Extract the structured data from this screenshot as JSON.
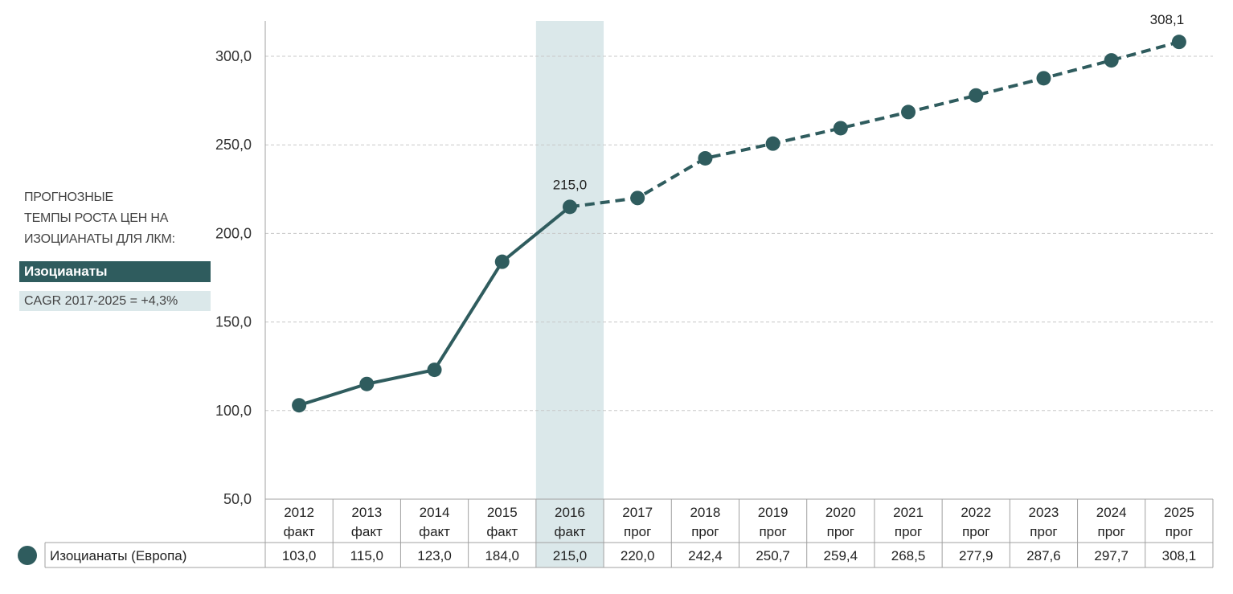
{
  "side_note": {
    "lines": [
      "ПРОГНОЗНЫЕ",
      "ТЕМПЫ РОСТА  ЦЕН  НА",
      "ИЗОЦИАНАТЫ  ДЛЯ  ЛКМ:"
    ],
    "series_label": "Изоцианаты",
    "cagr": "CAGR  2017-2025  =  +4,3%"
  },
  "colors": {
    "series": "#2f5c5e",
    "highlight": "#dbe8ea",
    "grid": "#c8c8c8",
    "table_border": "#a0a0a0"
  },
  "chart_data": {
    "type": "line",
    "categories": [
      "2012",
      "2013",
      "2014",
      "2015",
      "2016",
      "2017",
      "2018",
      "2019",
      "2020",
      "2021",
      "2022",
      "2023",
      "2024",
      "2025"
    ],
    "sublabels": [
      "факт",
      "факт",
      "факт",
      "факт",
      "факт",
      "прог",
      "прог",
      "прог",
      "прог",
      "прог",
      "прог",
      "прог",
      "прог",
      "прог"
    ],
    "series": [
      {
        "name": "Изоцианаты (Европа)",
        "values": [
          103.0,
          115.0,
          123.0,
          184.0,
          215.0,
          220.0,
          242.4,
          250.7,
          259.4,
          268.5,
          277.9,
          287.6,
          297.7,
          308.1
        ],
        "display_values": [
          "103,0",
          "115,0",
          "123,0",
          "184,0",
          "215,0",
          "220,0",
          "242,4",
          "250,7",
          "259,4",
          "268,5",
          "277,9",
          "287,6",
          "297,7",
          "308,1"
        ]
      }
    ],
    "actual_through": "2016",
    "highlight_category": "2016",
    "point_labels": [
      {
        "category": "2016",
        "text": "215,0"
      },
      {
        "category": "2025",
        "text": "308,1"
      }
    ],
    "yticks": [
      "300,0",
      "250,0",
      "200,0",
      "150,0",
      "100,0",
      "50,0"
    ],
    "ytick_values": [
      300,
      250,
      200,
      150,
      100,
      50
    ],
    "ylim": [
      50,
      320
    ],
    "grid": true,
    "legend": "bottom-left table"
  }
}
